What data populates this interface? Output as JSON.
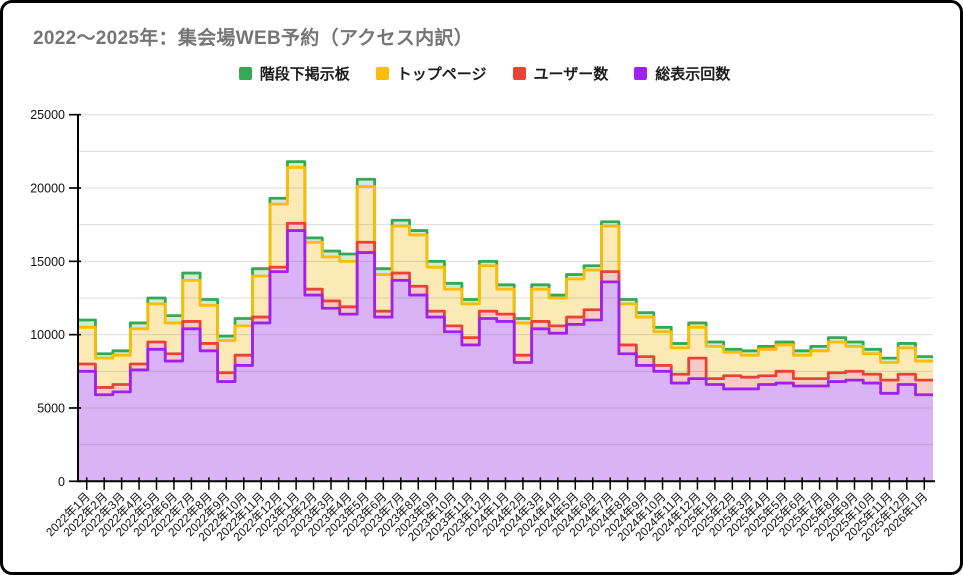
{
  "page_title": "2022〜2025年：集会場WEB予約（アクセス内訳）",
  "legend": [
    {
      "label": "階段下掲示板",
      "color": "#34a853"
    },
    {
      "label": "トップページ",
      "color": "#fbbc04"
    },
    {
      "label": "ユーザー数",
      "color": "#ea4335"
    },
    {
      "label": "総表示回数",
      "color": "#a020f0"
    }
  ],
  "chart_data": {
    "type": "area",
    "variant": "stepped-overlay-non-stacked",
    "title": "2022〜2025年：集会場WEB予約（アクセス内訳）",
    "legend_position": "top",
    "grid": true,
    "xlabel": "",
    "ylabel": "",
    "y_axis": {
      "min": 0,
      "max": 25000,
      "label_step": 5000,
      "grid_step": 2500,
      "tick_labels": [
        "0",
        "5000",
        "10000",
        "15000",
        "20000",
        "25000"
      ]
    },
    "x": [
      "2022年1月",
      "2022年2月",
      "2022年3月",
      "2022年4月",
      "2022年5月",
      "2022年6月",
      "2022年7月",
      "2022年8月",
      "2022年9月",
      "2022年10月",
      "2022年11月",
      "2022年12月",
      "2023年1月",
      "2023年2月",
      "2023年3月",
      "2023年4月",
      "2023年5月",
      "2023年6月",
      "2023年7月",
      "2023年8月",
      "2023年9月",
      "2023年10月",
      "2023年11月",
      "2023年12月",
      "2024年1月",
      "2024年2月",
      "2024年3月",
      "2024年4月",
      "2024年5月",
      "2024年6月",
      "2024年7月",
      "2024年8月",
      "2024年9月",
      "2024年10月",
      "2024年11月",
      "2024年12月",
      "2025年1月",
      "2025年2月",
      "2025年3月",
      "2025年4月",
      "2025年5月",
      "2025年6月",
      "2025年7月",
      "2025年8月",
      "2025年9月",
      "2025年10月",
      "2025年11月",
      "2025年12月",
      "2026年1月"
    ],
    "series": [
      {
        "name": "階段下掲示板",
        "line_color": "#34a853",
        "fill_color": "#d4ead9",
        "values": [
          11000,
          8700,
          8900,
          10800,
          12500,
          11300,
          14200,
          12400,
          9900,
          11100,
          14500,
          19300,
          21800,
          16600,
          15700,
          15500,
          20600,
          14500,
          17800,
          17100,
          15000,
          13500,
          12400,
          15000,
          13400,
          11100,
          13400,
          12700,
          14100,
          14700,
          17700,
          12400,
          11500,
          10500,
          9400,
          10800,
          9500,
          9000,
          8900,
          9200,
          9500,
          8900,
          9200,
          9800,
          9500,
          9000,
          8400,
          9400,
          8500
        ]
      },
      {
        "name": "トップページ",
        "line_color": "#fbbc04",
        "fill_color": "#fbeab6",
        "values": [
          10500,
          8400,
          8600,
          10400,
          12100,
          10800,
          13700,
          12000,
          9600,
          10600,
          14000,
          18900,
          21400,
          16300,
          15300,
          15000,
          20100,
          14100,
          17400,
          16800,
          14600,
          13100,
          12100,
          14700,
          13100,
          10800,
          13100,
          12500,
          13800,
          14400,
          17400,
          12100,
          11200,
          10200,
          9100,
          10500,
          9200,
          8800,
          8600,
          9000,
          9300,
          8600,
          8900,
          9500,
          9200,
          8700,
          8100,
          9100,
          8200
        ]
      },
      {
        "name": "ユーザー数",
        "line_color": "#ea4335",
        "fill_color": "#f6cbc6",
        "values": [
          8000,
          6400,
          6600,
          8000,
          9500,
          8700,
          10900,
          9400,
          7400,
          8600,
          11200,
          14600,
          17600,
          13100,
          12300,
          11900,
          16300,
          11600,
          14200,
          13300,
          11600,
          10600,
          9800,
          11600,
          11400,
          8600,
          10900,
          10600,
          11200,
          11700,
          14300,
          9300,
          8500,
          7900,
          7300,
          8400,
          7000,
          7200,
          7100,
          7200,
          7500,
          7000,
          7000,
          7400,
          7500,
          7300,
          6900,
          7300,
          6900
        ]
      },
      {
        "name": "総表示回数",
        "line_color": "#a020f0",
        "fill_color": "#d9b3f5",
        "values": [
          7500,
          5900,
          6100,
          7600,
          9000,
          8200,
          10400,
          8900,
          6800,
          7900,
          10800,
          14300,
          17100,
          12700,
          11800,
          11400,
          15600,
          11200,
          13700,
          12700,
          11200,
          10200,
          9300,
          11100,
          10900,
          8100,
          10400,
          10100,
          10700,
          11000,
          13600,
          8700,
          7900,
          7500,
          6700,
          7000,
          6600,
          6300,
          6300,
          6600,
          6700,
          6500,
          6500,
          6800,
          6900,
          6700,
          6000,
          6600,
          5900
        ]
      }
    ]
  }
}
